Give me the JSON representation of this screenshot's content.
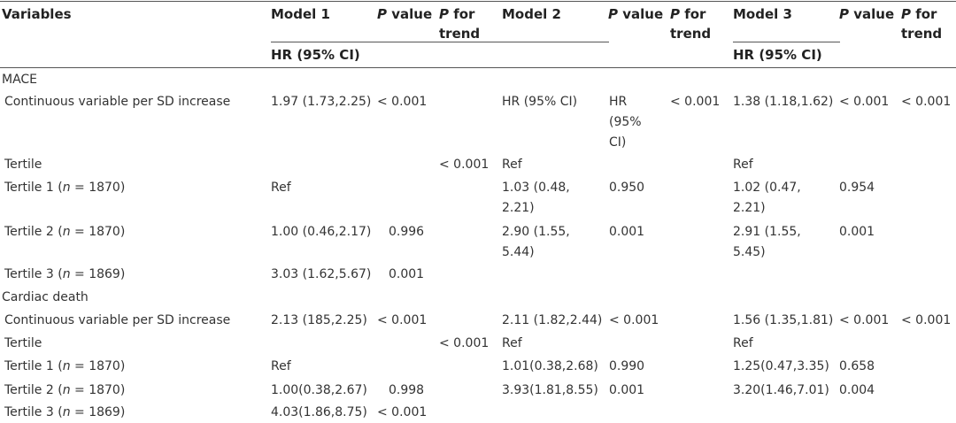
{
  "header": {
    "variables": "Variables",
    "model1": "Model 1",
    "pvalue_p": "P",
    "pvalue_word": " value",
    "pfor_p": "P",
    "pfor_word": " for",
    "trend": "trend",
    "model2": "Model 2",
    "model3": "Model 3",
    "hr1": "HR (95% CI)",
    "hr3": "HR (95% CI)"
  },
  "sections": {
    "mace": "MACE",
    "cardiac": "Cardiac death"
  },
  "rows": [
    {
      "label": "Continuous variable per SD increase",
      "m1": "1.97 (1.73,2.25)",
      "p1": "< 0.001",
      "t1": "",
      "m2": "HR (95% CI)",
      "p2a": "HR",
      "p2b": "(95%",
      "p2c": "CI)",
      "t2": "< 0.001",
      "m3": "1.38 (1.18,1.62)",
      "p3": "< 0.001",
      "t3": "< 0.001"
    },
    {
      "label": "Tertile",
      "m1": "",
      "p1": "",
      "t1": "< 0.001",
      "m2": "Ref",
      "p2": "",
      "t2": "",
      "m3": "Ref",
      "p3": "",
      "t3": ""
    },
    {
      "label_pre": "Tertile 1 (",
      "label_n": "n",
      "label_post": " = 1870)",
      "m1": "Ref",
      "p1": "",
      "t1": "",
      "m2a": "1.03 (0.48,",
      "m2b": "2.21)",
      "p2": "0.950",
      "t2": "",
      "m3a": "1.02 (0.47,",
      "m3b": "2.21)",
      "p3": "0.954",
      "t3": ""
    },
    {
      "label_pre": "Tertile 2 (",
      "label_n": "n",
      "label_post": " = 1870)",
      "m1": "1.00 (0.46,2.17)",
      "p1": "0.996",
      "t1": "",
      "m2a": "2.90 (1.55,",
      "m2b": "5.44)",
      "p2": "0.001",
      "t2": "",
      "m3a": "2.91 (1.55,",
      "m3b": "5.45)",
      "p3": "0.001",
      "t3": ""
    },
    {
      "label_pre": "Tertile 3 (",
      "label_n": "n",
      "label_post": " = 1869)",
      "m1": "3.03 (1.62,5.67)",
      "p1": "0.001",
      "t1": "",
      "m2": "",
      "p2": "",
      "t2": "",
      "m3": "",
      "p3": "",
      "t3": ""
    },
    {
      "label": "Continuous variable per SD increase",
      "m1": "2.13 (185,2.25)",
      "p1": "< 0.001",
      "t1": "",
      "m2": "2.11 (1.82,2.44)",
      "p2": "< 0.001",
      "t2": "",
      "m3": "1.56 (1.35,1.81)",
      "p3": "< 0.001",
      "t3": "< 0.001"
    },
    {
      "label": "Tertile",
      "m1": "",
      "p1": "",
      "t1": "< 0.001",
      "m2": "Ref",
      "p2": "",
      "t2": "",
      "m3": "Ref",
      "p3": "",
      "t3": ""
    },
    {
      "label_pre": "Tertile 1 (",
      "label_n": "n",
      "label_post": " = 1870)",
      "m1": "Ref",
      "p1": "",
      "t1": "",
      "m2": "1.01(0.38,2.68)",
      "p2": "0.990",
      "t2": "",
      "m3": "1.25(0.47,3.35)",
      "p3": "0.658",
      "t3": ""
    },
    {
      "label_pre": "Tertile 2 (",
      "label_n": "n",
      "label_post": " = 1870)",
      "m1": "1.00(0.38,2.67)",
      "p1": "0.998",
      "t1": "",
      "m2": "3.93(1.81,8.55)",
      "p2": "0.001",
      "t2": "",
      "m3": "3.20(1.46,7.01)",
      "p3": "0.004",
      "t3": ""
    },
    {
      "label_pre": "Tertile 3 (",
      "label_n": "n",
      "label_post": " = 1869)",
      "m1": "4.03(1.86,8.75)",
      "p1": "< 0.001",
      "t1": "",
      "m2": "",
      "p2": "",
      "t2": "",
      "m3": "",
      "p3": "",
      "t3": ""
    }
  ]
}
